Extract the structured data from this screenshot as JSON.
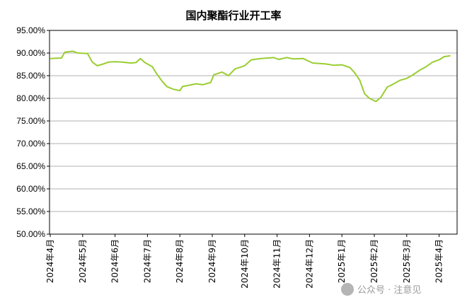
{
  "chart_data": {
    "type": "line",
    "title": "国内聚酯行业开工率",
    "xlabel": "",
    "ylabel": "",
    "ylim": [
      50,
      95
    ],
    "y_tick_labels": [
      "95.00%",
      "90.00%",
      "85.00%",
      "80.00%",
      "75.00%",
      "70.00%",
      "65.00%",
      "60.00%",
      "55.00%",
      "50.00%"
    ],
    "x_tick_labels": [
      "2024年4月",
      "2024年5月",
      "2024年6月",
      "2024年7月",
      "2024年8月",
      "2024年9月",
      "2024年10月",
      "2024年11月",
      "2024年12月",
      "2025年1月",
      "2025年2月",
      "2025年3月",
      "2025年4月"
    ],
    "grid": true,
    "legend": "none",
    "line_color": "#9acd32",
    "series": [
      {
        "values": [
          [
            0,
            88.8
          ],
          [
            0.35,
            88.9
          ],
          [
            0.45,
            90.2
          ],
          [
            0.7,
            90.4
          ],
          [
            0.85,
            90.0
          ],
          [
            1.15,
            89.9
          ],
          [
            1.3,
            88.0
          ],
          [
            1.45,
            87.2
          ],
          [
            1.6,
            87.5
          ],
          [
            1.8,
            88.0
          ],
          [
            2.0,
            88.1
          ],
          [
            2.2,
            88.0
          ],
          [
            2.5,
            87.8
          ],
          [
            2.65,
            87.9
          ],
          [
            2.78,
            88.8
          ],
          [
            2.92,
            87.9
          ],
          [
            3.15,
            87.0
          ],
          [
            3.25,
            85.8
          ],
          [
            3.45,
            83.8
          ],
          [
            3.6,
            82.6
          ],
          [
            3.8,
            82.0
          ],
          [
            4.0,
            81.7
          ],
          [
            4.08,
            82.6
          ],
          [
            4.3,
            82.9
          ],
          [
            4.5,
            83.2
          ],
          [
            4.7,
            83.0
          ],
          [
            4.95,
            83.5
          ],
          [
            5.05,
            85.2
          ],
          [
            5.3,
            85.8
          ],
          [
            5.5,
            85.0
          ],
          [
            5.7,
            86.5
          ],
          [
            6.0,
            87.2
          ],
          [
            6.2,
            88.5
          ],
          [
            6.5,
            88.8
          ],
          [
            6.9,
            89.0
          ],
          [
            7.05,
            88.6
          ],
          [
            7.3,
            89.0
          ],
          [
            7.5,
            88.7
          ],
          [
            7.8,
            88.8
          ],
          [
            8.1,
            87.8
          ],
          [
            8.5,
            87.6
          ],
          [
            8.75,
            87.3
          ],
          [
            9.0,
            87.4
          ],
          [
            9.25,
            86.8
          ],
          [
            9.4,
            85.6
          ],
          [
            9.55,
            84.0
          ],
          [
            9.7,
            81.0
          ],
          [
            9.85,
            80.0
          ],
          [
            10.05,
            79.3
          ],
          [
            10.2,
            80.2
          ],
          [
            10.4,
            82.5
          ],
          [
            10.55,
            83.0
          ],
          [
            10.8,
            84.0
          ],
          [
            11.0,
            84.4
          ],
          [
            11.15,
            85.0
          ],
          [
            11.4,
            86.2
          ],
          [
            11.6,
            87.0
          ],
          [
            11.8,
            88.0
          ],
          [
            12.0,
            88.5
          ],
          [
            12.15,
            89.2
          ],
          [
            12.35,
            89.4
          ]
        ]
      }
    ],
    "watermark": "公众号 · 注意见"
  }
}
